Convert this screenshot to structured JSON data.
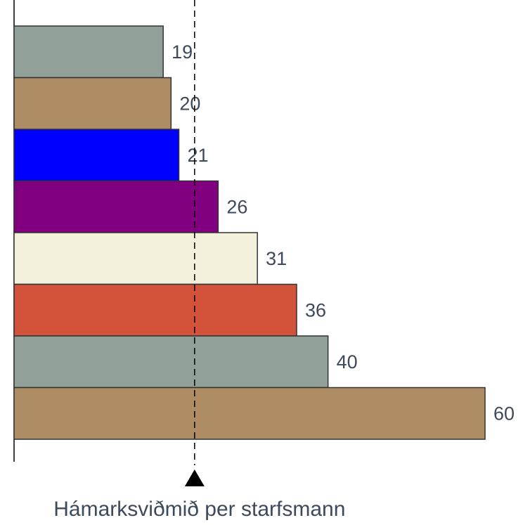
{
  "chart_data": {
    "type": "barh",
    "categories": [
      null,
      null,
      null,
      null,
      null,
      null,
      null,
      null
    ],
    "values": [
      19,
      20,
      21,
      26,
      31,
      36,
      40,
      60
    ],
    "colors": [
      "#92a09a",
      "#ae8d65",
      "#0000ff",
      "#800080",
      "#f3f0dc",
      "#d2533a",
      "#92a09a",
      "#ae8d65"
    ],
    "xlim": [
      0,
      60
    ],
    "reference_line": {
      "value": 23,
      "label": "Hámarksviðmið per starfsmann"
    }
  }
}
